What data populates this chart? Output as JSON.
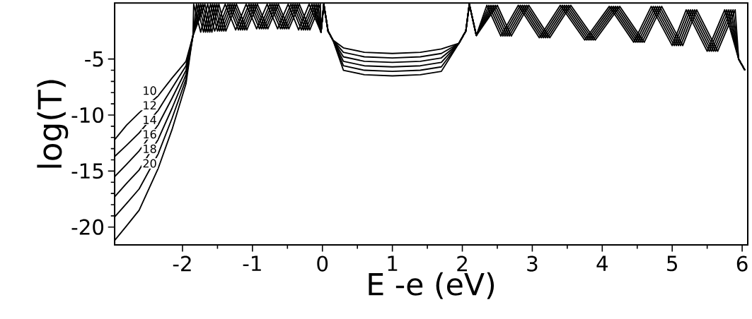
{
  "chart_data": {
    "type": "line",
    "xlabel": "E -e (eV)",
    "ylabel": "log(T)",
    "xlim": [
      -2.97,
      6.08
    ],
    "ylim": [
      -21.6,
      0
    ],
    "xticks": [
      -2,
      -1,
      0,
      1,
      2,
      3,
      4,
      5,
      6
    ],
    "yticks": [
      -5,
      -10,
      -15,
      -20
    ],
    "series": [
      {
        "name": "10",
        "color": "#000000",
        "x": [
          -2.97,
          -2.8,
          -2.62,
          -2.35,
          -2.15,
          -1.95,
          -1.88,
          -1.85,
          -1.8,
          -1.7,
          -1.6,
          -1.5,
          -1.35,
          -1.2,
          -1.05,
          -0.9,
          -0.75,
          -0.6,
          -0.45,
          -0.3,
          -0.15,
          -0.02,
          0.02,
          0.08,
          0.15,
          0.3,
          0.6,
          1.0,
          1.4,
          1.7,
          1.95,
          2.05,
          2.1,
          2.2,
          2.35,
          2.55,
          2.8,
          3.1,
          3.4,
          3.75,
          4.1,
          4.45,
          4.7,
          5.0,
          5.2,
          5.5,
          5.75,
          5.95,
          6.04
        ],
        "values": [
          -12.2,
          -10.9,
          -9.8,
          -8.3,
          -6.7,
          -5.2,
          -3.6,
          -2.9,
          -0.1,
          -2.6,
          -0.1,
          -2.5,
          -0.1,
          -2.4,
          -0.1,
          -2.3,
          -0.1,
          -2.3,
          -0.1,
          -2.4,
          -0.1,
          -2.6,
          -0.1,
          -2.5,
          -3.3,
          -4.0,
          -4.4,
          -4.5,
          -4.4,
          -4.1,
          -3.6,
          -2.5,
          -0.1,
          -2.9,
          -0.2,
          -2.95,
          -0.2,
          -3.1,
          -0.2,
          -3.3,
          -0.3,
          -3.5,
          -0.3,
          -3.8,
          -0.6,
          -4.3,
          -0.6,
          -5.0,
          -6.0
        ]
      },
      {
        "name": "12",
        "color": "#000000",
        "x": [
          -2.97,
          -2.8,
          -2.62,
          -2.35,
          -2.15,
          -1.95,
          -1.88,
          -1.85,
          -1.77,
          -1.67,
          -1.57,
          -1.47,
          -1.32,
          -1.17,
          -1.02,
          -0.87,
          -0.72,
          -0.57,
          -0.42,
          -0.27,
          -0.12,
          -0.02,
          0.02,
          0.08,
          0.15,
          0.3,
          0.6,
          1.0,
          1.4,
          1.7,
          1.95,
          2.05,
          2.1,
          2.2,
          2.38,
          2.58,
          2.83,
          3.13,
          3.43,
          3.78,
          4.13,
          4.48,
          4.73,
          5.03,
          5.23,
          5.53,
          5.78,
          5.95,
          6.04
        ],
        "values": [
          -13.7,
          -12.7,
          -11.6,
          -9.6,
          -7.6,
          -5.6,
          -3.7,
          -2.9,
          -0.1,
          -2.6,
          -0.1,
          -2.5,
          -0.1,
          -2.4,
          -0.1,
          -2.3,
          -0.1,
          -2.3,
          -0.1,
          -2.4,
          -0.1,
          -2.6,
          -0.1,
          -2.5,
          -3.3,
          -4.4,
          -4.8,
          -4.9,
          -4.8,
          -4.5,
          -3.6,
          -2.5,
          -0.1,
          -2.9,
          -0.2,
          -2.95,
          -0.2,
          -3.1,
          -0.2,
          -3.3,
          -0.3,
          -3.5,
          -0.3,
          -3.8,
          -0.6,
          -4.3,
          -0.6,
          -5.0,
          -6.0
        ]
      },
      {
        "name": "14",
        "color": "#000000",
        "x": [
          -2.97,
          -2.8,
          -2.62,
          -2.35,
          -2.15,
          -1.95,
          -1.88,
          -1.85,
          -1.74,
          -1.64,
          -1.54,
          -1.44,
          -1.29,
          -1.14,
          -0.99,
          -0.84,
          -0.69,
          -0.54,
          -0.39,
          -0.24,
          -0.09,
          -0.02,
          0.02,
          0.08,
          0.15,
          0.3,
          0.6,
          1.0,
          1.4,
          1.7,
          1.95,
          2.05,
          2.1,
          2.2,
          2.41,
          2.61,
          2.86,
          3.16,
          3.46,
          3.81,
          4.16,
          4.51,
          4.76,
          5.06,
          5.26,
          5.56,
          5.81,
          5.95,
          6.04
        ],
        "values": [
          -15.5,
          -14.4,
          -13.2,
          -10.9,
          -8.5,
          -6.0,
          -3.8,
          -2.9,
          -0.1,
          -2.6,
          -0.1,
          -2.5,
          -0.1,
          -2.4,
          -0.1,
          -2.3,
          -0.1,
          -2.3,
          -0.1,
          -2.4,
          -0.1,
          -2.6,
          -0.1,
          -2.5,
          -3.3,
          -4.8,
          -5.2,
          -5.3,
          -5.2,
          -4.9,
          -3.6,
          -2.5,
          -0.1,
          -2.9,
          -0.2,
          -2.95,
          -0.2,
          -3.1,
          -0.2,
          -3.3,
          -0.3,
          -3.5,
          -0.3,
          -3.8,
          -0.6,
          -4.3,
          -0.6,
          -5.0,
          -6.0
        ]
      },
      {
        "name": "16",
        "color": "#000000",
        "x": [
          -2.97,
          -2.8,
          -2.62,
          -2.35,
          -2.15,
          -1.95,
          -1.88,
          -1.85,
          -1.71,
          -1.61,
          -1.51,
          -1.41,
          -1.26,
          -1.11,
          -0.96,
          -0.81,
          -0.66,
          -0.51,
          -0.36,
          -0.21,
          -0.06,
          -0.02,
          0.02,
          0.08,
          0.15,
          0.3,
          0.6,
          1.0,
          1.4,
          1.7,
          1.95,
          2.05,
          2.1,
          2.2,
          2.44,
          2.64,
          2.89,
          3.19,
          3.49,
          3.84,
          4.19,
          4.54,
          4.79,
          5.09,
          5.29,
          5.59,
          5.84,
          5.95,
          6.04
        ],
        "values": [
          -17.3,
          -16.1,
          -14.9,
          -12.2,
          -9.4,
          -6.4,
          -3.9,
          -2.9,
          -0.1,
          -2.6,
          -0.1,
          -2.5,
          -0.1,
          -2.4,
          -0.1,
          -2.3,
          -0.1,
          -2.3,
          -0.1,
          -2.4,
          -0.1,
          -2.6,
          -0.1,
          -2.5,
          -3.3,
          -5.2,
          -5.6,
          -5.7,
          -5.6,
          -5.3,
          -3.6,
          -2.5,
          -0.1,
          -2.9,
          -0.2,
          -2.95,
          -0.2,
          -3.1,
          -0.2,
          -3.3,
          -0.3,
          -3.5,
          -0.3,
          -3.8,
          -0.6,
          -4.3,
          -0.6,
          -5.0,
          -6.0
        ]
      },
      {
        "name": "18",
        "color": "#000000",
        "x": [
          -2.97,
          -2.8,
          -2.62,
          -2.35,
          -2.15,
          -1.95,
          -1.88,
          -1.85,
          -1.68,
          -1.58,
          -1.48,
          -1.38,
          -1.23,
          -1.08,
          -0.93,
          -0.78,
          -0.63,
          -0.48,
          -0.33,
          -0.18,
          -0.03,
          -0.02,
          0.02,
          0.08,
          0.15,
          0.3,
          0.6,
          1.0,
          1.4,
          1.7,
          1.95,
          2.05,
          2.1,
          2.2,
          2.47,
          2.67,
          2.92,
          3.22,
          3.52,
          3.87,
          4.22,
          4.57,
          4.82,
          5.12,
          5.32,
          5.62,
          5.87,
          5.95,
          6.04
        ],
        "values": [
          -19.1,
          -17.9,
          -16.6,
          -13.5,
          -10.3,
          -6.8,
          -4.0,
          -2.9,
          -0.1,
          -2.6,
          -0.1,
          -2.5,
          -0.1,
          -2.4,
          -0.1,
          -2.3,
          -0.1,
          -2.3,
          -0.1,
          -2.4,
          -0.1,
          -2.6,
          -0.1,
          -2.5,
          -3.3,
          -5.6,
          -6.0,
          -6.1,
          -6.0,
          -5.7,
          -3.6,
          -2.5,
          -0.1,
          -2.9,
          -0.2,
          -2.95,
          -0.2,
          -3.1,
          -0.2,
          -3.3,
          -0.3,
          -3.5,
          -0.3,
          -3.8,
          -0.6,
          -4.3,
          -0.6,
          -5.0,
          -6.0
        ]
      },
      {
        "name": "20",
        "color": "#000000",
        "x": [
          -2.97,
          -2.8,
          -2.62,
          -2.35,
          -2.15,
          -1.95,
          -1.88,
          -1.85,
          -1.84,
          -1.74,
          -1.64,
          -1.54,
          -1.39,
          -1.24,
          -1.09,
          -0.94,
          -0.79,
          -0.64,
          -0.49,
          -0.34,
          -0.19,
          -0.02,
          0.02,
          0.08,
          0.15,
          0.3,
          0.6,
          1.0,
          1.4,
          1.7,
          1.95,
          2.05,
          2.1,
          2.2,
          2.5,
          2.7,
          2.95,
          3.25,
          3.55,
          3.9,
          4.25,
          4.6,
          4.85,
          5.15,
          5.35,
          5.65,
          5.9,
          5.95,
          6.04
        ],
        "values": [
          -21.2,
          -19.9,
          -18.5,
          -14.8,
          -11.3,
          -7.2,
          -4.1,
          -2.9,
          -0.1,
          -2.6,
          -0.1,
          -2.5,
          -0.1,
          -2.4,
          -0.1,
          -2.3,
          -0.1,
          -2.3,
          -0.1,
          -2.4,
          -0.1,
          -2.6,
          -0.1,
          -2.5,
          -3.3,
          -6.0,
          -6.4,
          -6.5,
          -6.4,
          -6.1,
          -3.6,
          -2.5,
          -0.1,
          -2.9,
          -0.2,
          -2.95,
          -0.2,
          -3.1,
          -0.2,
          -3.3,
          -0.3,
          -3.5,
          -0.3,
          -3.8,
          -0.6,
          -4.3,
          -0.6,
          -5.0,
          -6.0
        ]
      }
    ]
  }
}
